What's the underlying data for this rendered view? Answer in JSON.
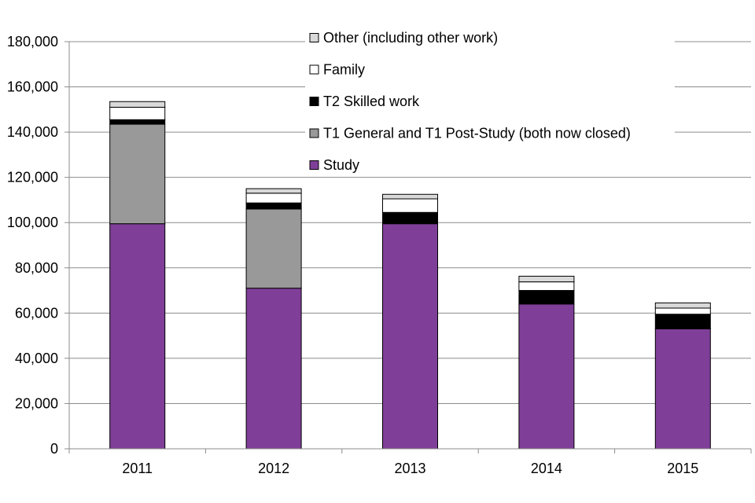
{
  "chart_data": {
    "type": "bar",
    "stacked": true,
    "categories": [
      "2011",
      "2012",
      "2013",
      "2014",
      "2015"
    ],
    "series": [
      {
        "name": "Study",
        "color": "#7f3f98",
        "values": [
          99500,
          71000,
          99500,
          64000,
          53000
        ]
      },
      {
        "name": "T1 General and T1 Post-Study (both now closed)",
        "color": "#999999",
        "values": [
          44000,
          35000,
          0,
          0,
          0
        ]
      },
      {
        "name": "T2 Skilled work",
        "color": "#000000",
        "values": [
          2000,
          2700,
          5000,
          6000,
          6500
        ]
      },
      {
        "name": "Family",
        "color": "#ffffff",
        "values": [
          5500,
          4300,
          6000,
          3800,
          2700
        ]
      },
      {
        "name": "Other (including other work)",
        "color": "#d9d9d9",
        "values": [
          2500,
          2000,
          2000,
          2500,
          2300
        ]
      }
    ],
    "ylim": [
      0,
      180000
    ],
    "yticks": [
      "0",
      "20,000",
      "40,000",
      "60,000",
      "80,000",
      "100,000",
      "120,000",
      "140,000",
      "160,000",
      "180,000"
    ],
    "grid": true,
    "legend_position": "top-center",
    "legend_order": [
      "Other (including other work)",
      "Family",
      "T2 Skilled work",
      "T1 General and T1 Post-Study (both now closed)",
      "Study"
    ],
    "title": "",
    "xlabel": "",
    "ylabel": ""
  }
}
